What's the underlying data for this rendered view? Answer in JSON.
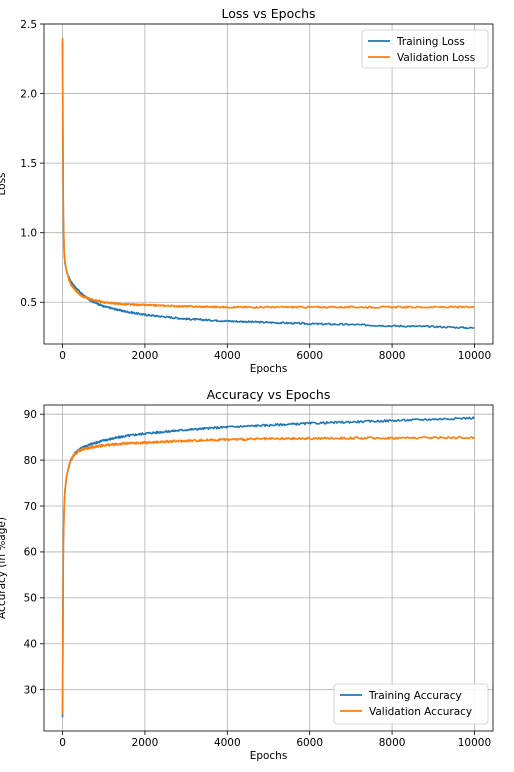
{
  "chart_data": [
    {
      "type": "line",
      "title": "Loss vs Epochs",
      "xlabel": "Epochs",
      "ylabel": "Loss",
      "xlim": [
        -450,
        10450
      ],
      "ylim": [
        0.2,
        2.5
      ],
      "xticks": [
        0,
        2000,
        4000,
        6000,
        8000,
        10000
      ],
      "yticks": [
        0.5,
        1.0,
        1.5,
        2.0,
        2.5
      ],
      "ytick_labels": [
        "0.5",
        "1.0",
        "1.5",
        "2.0",
        "2.5"
      ],
      "grid": true,
      "legend": "top-right",
      "series": [
        {
          "name": "Training Loss",
          "color": "#1f77b4",
          "x": [
            0,
            10,
            20,
            40,
            60,
            100,
            150,
            200,
            300,
            400,
            500,
            700,
            1000,
            1500,
            2000,
            3000,
            4000,
            5000,
            6000,
            7000,
            8000,
            9000,
            10000
          ],
          "y": [
            2.38,
            1.6,
            1.1,
            0.85,
            0.78,
            0.72,
            0.68,
            0.65,
            0.61,
            0.58,
            0.55,
            0.51,
            0.47,
            0.435,
            0.41,
            0.38,
            0.365,
            0.355,
            0.345,
            0.34,
            0.33,
            0.325,
            0.315
          ]
        },
        {
          "name": "Validation Loss",
          "color": "#ff7f0e",
          "x": [
            0,
            10,
            20,
            40,
            60,
            100,
            150,
            200,
            300,
            400,
            500,
            700,
            1000,
            1500,
            2000,
            3000,
            4000,
            5000,
            6000,
            7000,
            8000,
            9000,
            10000
          ],
          "y": [
            2.4,
            1.62,
            1.12,
            0.86,
            0.79,
            0.72,
            0.67,
            0.63,
            0.59,
            0.56,
            0.54,
            0.52,
            0.5,
            0.485,
            0.48,
            0.47,
            0.465,
            0.465,
            0.465,
            0.465,
            0.465,
            0.465,
            0.465
          ]
        }
      ]
    },
    {
      "type": "line",
      "title": "Accuracy vs Epochs",
      "xlabel": "Epochs",
      "ylabel": "Accuracy (in %age)",
      "xlim": [
        -450,
        10450
      ],
      "ylim": [
        21,
        92
      ],
      "xticks": [
        0,
        2000,
        4000,
        6000,
        8000,
        10000
      ],
      "yticks": [
        30,
        40,
        50,
        60,
        70,
        80,
        90
      ],
      "ytick_labels": [
        "30",
        "40",
        "50",
        "60",
        "70",
        "80",
        "90"
      ],
      "grid": true,
      "legend": "bottom-right",
      "series": [
        {
          "name": "Training Accuracy",
          "color": "#1f77b4",
          "x": [
            0,
            10,
            20,
            40,
            60,
            100,
            150,
            200,
            300,
            400,
            500,
            700,
            1000,
            1500,
            2000,
            3000,
            4000,
            5000,
            6000,
            7000,
            8000,
            9000,
            10000
          ],
          "y": [
            24,
            45,
            62,
            70,
            73.5,
            76.5,
            78.5,
            80,
            81.5,
            82.3,
            82.8,
            83.5,
            84.3,
            85.2,
            85.8,
            86.6,
            87.2,
            87.6,
            88.0,
            88.3,
            88.6,
            88.9,
            89.2
          ]
        },
        {
          "name": "Validation Accuracy",
          "color": "#ff7f0e",
          "x": [
            0,
            10,
            20,
            40,
            60,
            100,
            150,
            200,
            300,
            400,
            500,
            700,
            1000,
            1500,
            2000,
            3000,
            4000,
            5000,
            6000,
            7000,
            8000,
            9000,
            10000
          ],
          "y": [
            24.5,
            45,
            62,
            70,
            73.5,
            76.5,
            78.5,
            80,
            81.3,
            82,
            82.4,
            82.8,
            83.2,
            83.6,
            83.8,
            84.2,
            84.5,
            84.6,
            84.7,
            84.8,
            84.8,
            84.9,
            84.9
          ]
        }
      ]
    }
  ]
}
